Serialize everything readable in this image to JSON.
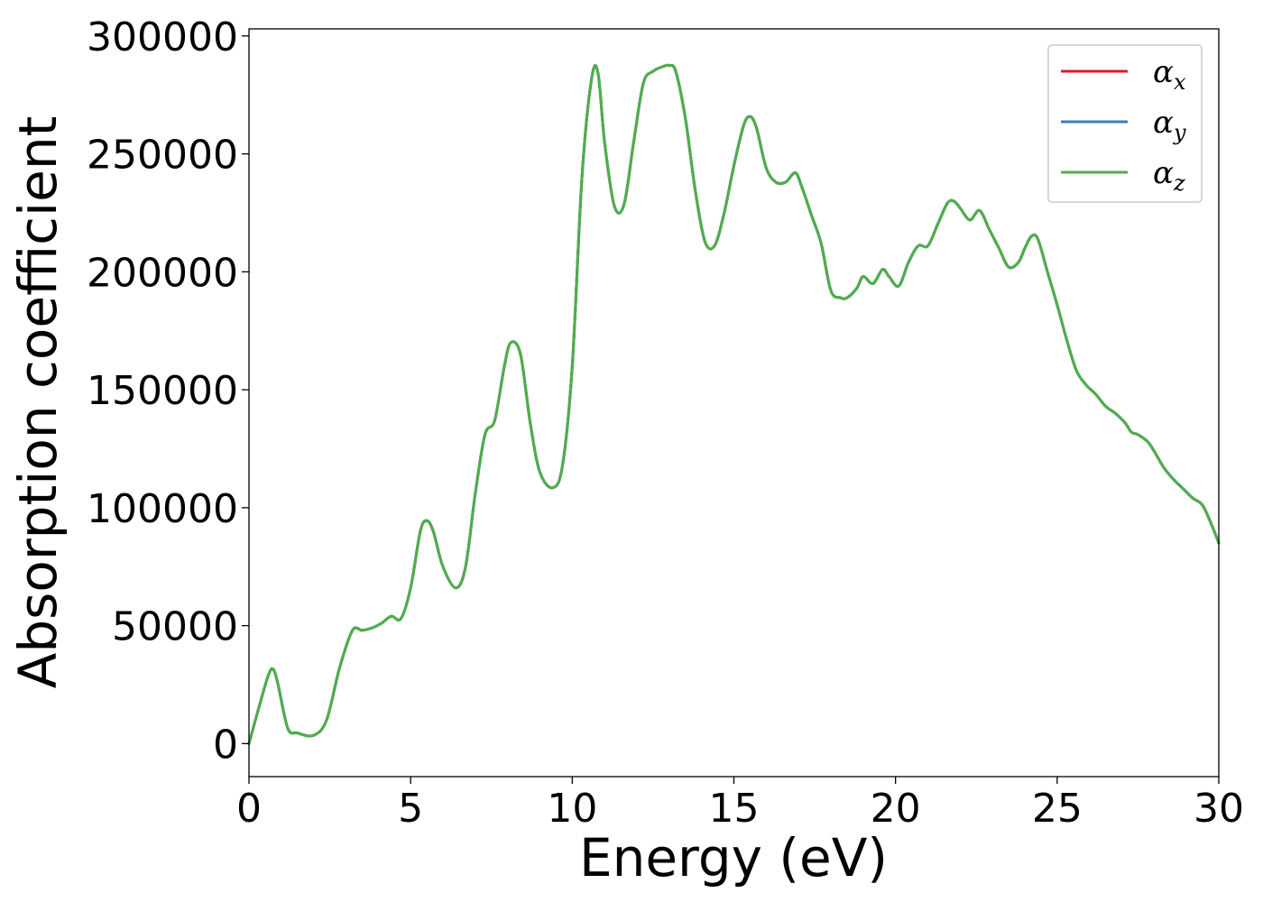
{
  "chart_data": {
    "type": "line",
    "title": "",
    "xlabel": "Energy (eV)",
    "ylabel": "Absorption coefficient",
    "xlim": [
      0,
      30
    ],
    "ylim": [
      -14000,
      303000
    ],
    "xticks": [
      0,
      5,
      10,
      15,
      20,
      25,
      30
    ],
    "xtick_labels": [
      "0",
      "5",
      "10",
      "15",
      "20",
      "25",
      "30"
    ],
    "yticks": [
      0,
      50000,
      100000,
      150000,
      200000,
      250000,
      300000
    ],
    "ytick_labels": [
      "0",
      "50000",
      "100000",
      "150000",
      "200000",
      "250000",
      "300000"
    ],
    "grid": false,
    "legend": {
      "location": "top-right",
      "entries": [
        {
          "base": "α",
          "sub": "x",
          "color": "#e41a1c"
        },
        {
          "base": "α",
          "sub": "y",
          "color": "#377eb8"
        },
        {
          "base": "α",
          "sub": "z",
          "color": "#4daf4a"
        }
      ]
    },
    "x": [
      0,
      0.3,
      0.6,
      0.75,
      0.9,
      1.2,
      1.5,
      2.0,
      2.4,
      2.8,
      3.2,
      3.5,
      3.8,
      4.1,
      4.4,
      4.7,
      5.0,
      5.3,
      5.5,
      5.7,
      6.0,
      6.4,
      6.7,
      7.0,
      7.3,
      7.6,
      7.9,
      8.1,
      8.4,
      8.7,
      9.0,
      9.4,
      9.7,
      10.0,
      10.3,
      10.6,
      10.8,
      11.0,
      11.3,
      11.6,
      11.9,
      12.2,
      12.5,
      12.8,
      13.0,
      13.2,
      13.5,
      13.8,
      14.1,
      14.4,
      14.7,
      15.0,
      15.3,
      15.5,
      15.7,
      16.0,
      16.3,
      16.6,
      16.9,
      17.1,
      17.4,
      17.7,
      18.0,
      18.3,
      18.5,
      18.8,
      19.0,
      19.3,
      19.6,
      19.8,
      20.1,
      20.4,
      20.7,
      21.0,
      21.3,
      21.6,
      21.8,
      22.0,
      22.3,
      22.6,
      22.9,
      23.2,
      23.5,
      23.8,
      24.0,
      24.2,
      24.4,
      24.7,
      25.0,
      25.3,
      25.6,
      25.9,
      26.2,
      26.5,
      26.8,
      27.1,
      27.3,
      27.5,
      27.8,
      28.0,
      28.3,
      28.6,
      28.9,
      29.2,
      29.5,
      29.8,
      30.0
    ],
    "series": [
      {
        "name": "αx",
        "color": "#e41a1c",
        "values": [
          0,
          15000,
          29000,
          31500,
          25000,
          6500,
          4500,
          3500,
          10000,
          32000,
          48000,
          48000,
          49000,
          51000,
          54000,
          53000,
          66000,
          90000,
          94500,
          90000,
          75000,
          66000,
          75000,
          106000,
          131000,
          137000,
          160000,
          170000,
          165000,
          136000,
          115000,
          108500,
          118000,
          160000,
          240000,
          282000,
          284000,
          255000,
          228000,
          228500,
          255000,
          280000,
          285000,
          287000,
          287500,
          285000,
          265000,
          235000,
          213000,
          211000,
          225000,
          245000,
          262000,
          265800,
          261000,
          244000,
          238000,
          238000,
          242000,
          236000,
          224000,
          212000,
          192000,
          189000,
          189000,
          193000,
          198000,
          195000,
          201000,
          198000,
          194000,
          204000,
          211000,
          211000,
          220000,
          229000,
          230000,
          227000,
          222000,
          226000,
          218000,
          210000,
          202000,
          204000,
          210000,
          215000,
          214000,
          200000,
          186000,
          171000,
          158000,
          152000,
          148000,
          143000,
          140000,
          136000,
          132000,
          131000,
          128000,
          124000,
          117000,
          112000,
          108000,
          104000,
          101000,
          92000,
          85000
        ]
      },
      {
        "name": "αy",
        "color": "#377eb8",
        "values": [
          0,
          15000,
          29000,
          31500,
          25000,
          6500,
          4500,
          3500,
          10000,
          32000,
          48000,
          48000,
          49000,
          51000,
          54000,
          53000,
          66000,
          90000,
          94500,
          90000,
          75000,
          66000,
          75000,
          106000,
          131000,
          137000,
          160000,
          170000,
          165000,
          136000,
          115000,
          108500,
          118000,
          160000,
          240000,
          282000,
          284000,
          255000,
          228000,
          228500,
          255000,
          280000,
          285000,
          287000,
          287500,
          285000,
          265000,
          235000,
          213000,
          211000,
          225000,
          245000,
          262000,
          265800,
          261000,
          244000,
          238000,
          238000,
          242000,
          236000,
          224000,
          212000,
          192000,
          189000,
          189000,
          193000,
          198000,
          195000,
          201000,
          198000,
          194000,
          204000,
          211000,
          211000,
          220000,
          229000,
          230000,
          227000,
          222000,
          226000,
          218000,
          210000,
          202000,
          204000,
          210000,
          215000,
          214000,
          200000,
          186000,
          171000,
          158000,
          152000,
          148000,
          143000,
          140000,
          136000,
          132000,
          131000,
          128000,
          124000,
          117000,
          112000,
          108000,
          104000,
          101000,
          92000,
          85000
        ]
      },
      {
        "name": "αz",
        "color": "#4daf4a",
        "values": [
          0,
          15000,
          29000,
          31500,
          25000,
          6500,
          4500,
          3500,
          10000,
          32000,
          48000,
          48000,
          49000,
          51000,
          54000,
          53000,
          66000,
          90000,
          94500,
          90000,
          75000,
          66000,
          75000,
          106000,
          131000,
          137000,
          160000,
          170000,
          165000,
          136000,
          115000,
          108500,
          118000,
          160000,
          240000,
          282000,
          284000,
          255000,
          228000,
          228500,
          255000,
          280000,
          285000,
          287000,
          287500,
          285000,
          265000,
          235000,
          213000,
          211000,
          225000,
          245000,
          262000,
          265800,
          261000,
          244000,
          238000,
          238000,
          242000,
          236000,
          224000,
          212000,
          192000,
          189000,
          189000,
          193000,
          198000,
          195000,
          201000,
          198000,
          194000,
          204000,
          211000,
          211000,
          220000,
          229000,
          230000,
          227000,
          222000,
          226000,
          218000,
          210000,
          202000,
          204000,
          210000,
          215000,
          214000,
          200000,
          186000,
          171000,
          158000,
          152000,
          148000,
          143000,
          140000,
          136000,
          132000,
          131000,
          128000,
          124000,
          117000,
          112000,
          108000,
          104000,
          101000,
          92000,
          85000
        ]
      }
    ]
  }
}
